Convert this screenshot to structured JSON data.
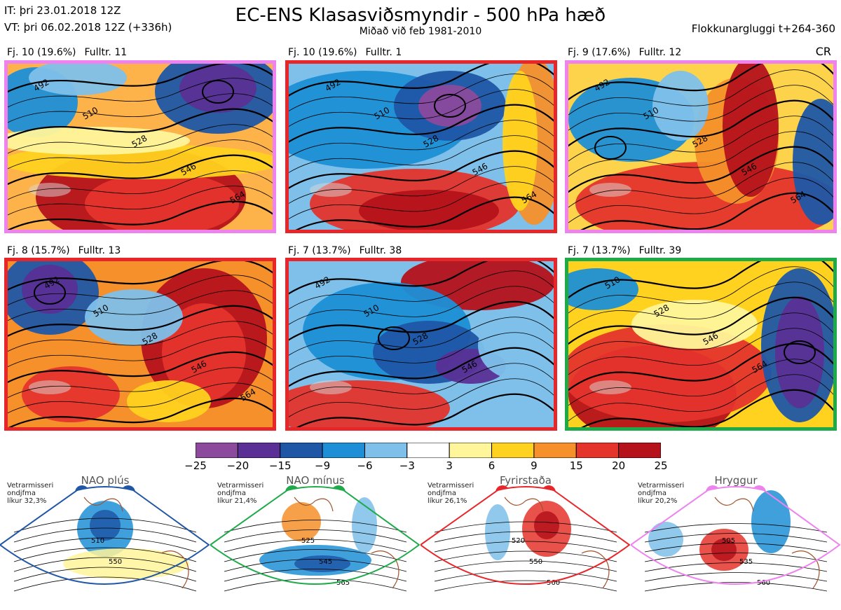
{
  "header": {
    "init_time": "IT: þri 23.01.2018 12Z",
    "valid_time": "VT: þri 06.02.2018 12Z  (+336h)",
    "title": "EC-ENS Klasasviðsmyndir - 500 hPa hæð",
    "subtitle": "Miðað við feb 1981-2010",
    "window": "Flokkunargluggi t+264-360",
    "code": "CR"
  },
  "panels": [
    {
      "count": "Fj. 10 (19.6%)",
      "rep": "Fulltr. 11",
      "border": "#ee82ee",
      "contours": [
        "492",
        "510",
        "528",
        "546",
        "564"
      ]
    },
    {
      "count": "Fj. 10 (19.6%)",
      "rep": "Fulltr. 1",
      "border": "#e8262a",
      "contours": [
        "492",
        "510",
        "528",
        "546",
        "564"
      ]
    },
    {
      "count": "Fj. 9 (17.6%)",
      "rep": "Fulltr. 12",
      "border": "#ee82ee",
      "contours": [
        "492",
        "510",
        "528",
        "546",
        "564"
      ]
    },
    {
      "count": "Fj. 8 (15.7%)",
      "rep": "Fulltr. 13",
      "border": "#e8262a",
      "contours": [
        "492",
        "510",
        "528",
        "546",
        "564"
      ]
    },
    {
      "count": "Fj. 7 (13.7%)",
      "rep": "Fulltr. 38",
      "border": "#e8262a",
      "contours": [
        "492",
        "510",
        "528",
        "546"
      ]
    },
    {
      "count": "Fj. 7 (13.7%)",
      "rep": "Fulltr. 39",
      "border": "#1faa4a",
      "contours": [
        "510",
        "528",
        "546",
        "564"
      ]
    }
  ],
  "colorbar": {
    "ticks": [
      "−25",
      "−20",
      "−15",
      "−9",
      "−6",
      "−3",
      "3",
      "6",
      "9",
      "15",
      "20",
      "25"
    ],
    "colors": [
      "#8b4a9c",
      "#5a3096",
      "#1f57a6",
      "#1e8fd6",
      "#7ec0ea",
      "#ffffff",
      "#fff59a",
      "#ffd21f",
      "#f5902a",
      "#e5342c",
      "#b5121b"
    ]
  },
  "regimes": [
    {
      "name": "NAO plús",
      "note": [
        "Vetrarmisseri",
        "ondjfma",
        "líkur 32,3%"
      ],
      "color": "#1f57a6",
      "labels": [
        "510",
        "550"
      ]
    },
    {
      "name": "NAO mínus",
      "note": [
        "Vetrarmisseri",
        "ondjfma",
        "líkur 21,4%"
      ],
      "color": "#1faa4a",
      "labels": [
        "525",
        "545",
        "565"
      ]
    },
    {
      "name": "Fyrirstaða",
      "note": [
        "Vetrarmisseri",
        "ondjfma",
        "líkur 26,1%"
      ],
      "color": "#e8262a",
      "labels": [
        "520",
        "550",
        "560"
      ]
    },
    {
      "name": "Hryggur",
      "note": [
        "Vetrarmisseri",
        "ondjfma",
        "líkur 20,2%"
      ],
      "color": "#ee82ee",
      "labels": [
        "505",
        "535",
        "560"
      ]
    }
  ]
}
